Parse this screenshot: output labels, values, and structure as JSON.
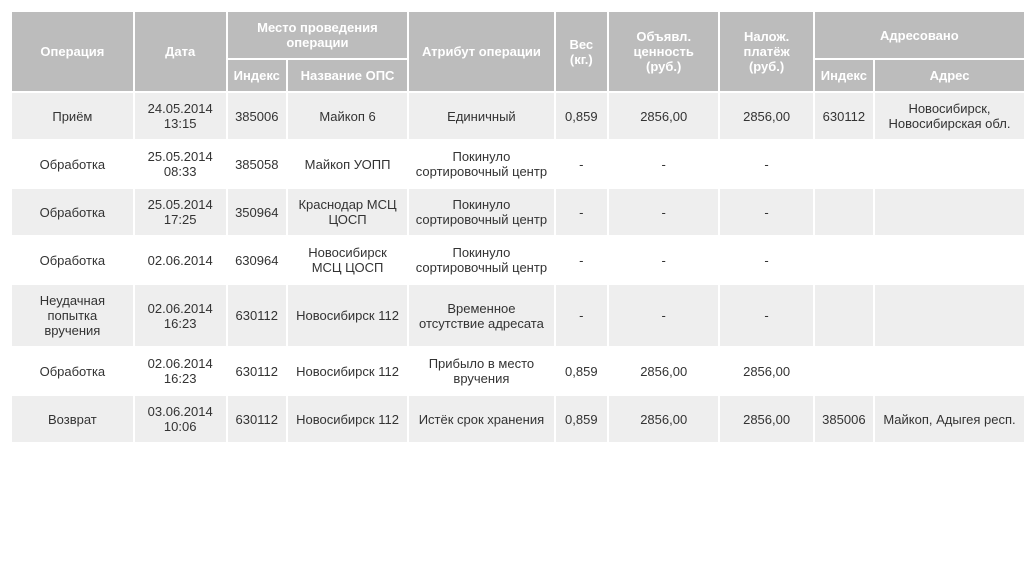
{
  "table": {
    "header_bg": "#bcbcbc",
    "header_fg": "#ffffff",
    "row_odd_bg": "#eeeeee",
    "row_even_bg": "#ffffff",
    "cell_fg": "#333333",
    "font_size": 13,
    "columns": {
      "operation": "Операция",
      "date": "Дата",
      "location_group": "Место проведения операции",
      "location_index": "Индекс",
      "location_name": "Название ОПС",
      "attribute": "Атрибут операции",
      "weight": "Вес (кг.)",
      "declared": "Объявл. ценность (руб.)",
      "cod": "Налож. платёж (руб.)",
      "addr_group": "Адресовано",
      "addr_index": "Индекс",
      "addr_addr": "Адрес"
    },
    "rows": [
      {
        "operation": "Приём",
        "date": "24.05.2014 13:15",
        "loc_index": "385006",
        "loc_name": "Майкоп 6",
        "attribute": "Единичный",
        "weight": "0,859",
        "declared": "2856,00",
        "cod": "2856,00",
        "addr_index": "630112",
        "addr_addr": "Новосибирск, Новосибирская обл."
      },
      {
        "operation": "Обработка",
        "date": "25.05.2014 08:33",
        "loc_index": "385058",
        "loc_name": "Майкоп УОПП",
        "attribute": "Покинуло сортировочный центр",
        "weight": "-",
        "declared": "-",
        "cod": "-",
        "addr_index": "",
        "addr_addr": ""
      },
      {
        "operation": "Обработка",
        "date": "25.05.2014 17:25",
        "loc_index": "350964",
        "loc_name": "Краснодар МСЦ ЦОСП",
        "attribute": "Покинуло сортировочный центр",
        "weight": "-",
        "declared": "-",
        "cod": "-",
        "addr_index": "",
        "addr_addr": ""
      },
      {
        "operation": "Обработка",
        "date": "02.06.2014",
        "loc_index": "630964",
        "loc_name": "Новосибирск МСЦ ЦОСП",
        "attribute": "Покинуло сортировочный центр",
        "weight": "-",
        "declared": "-",
        "cod": "-",
        "addr_index": "",
        "addr_addr": ""
      },
      {
        "operation": "Неудачная попытка вручения",
        "date": "02.06.2014 16:23",
        "loc_index": "630112",
        "loc_name": "Новосибирск 112",
        "attribute": "Временное отсутствие адресата",
        "weight": "-",
        "declared": "-",
        "cod": "-",
        "addr_index": "",
        "addr_addr": ""
      },
      {
        "operation": "Обработка",
        "date": "02.06.2014 16:23",
        "loc_index": "630112",
        "loc_name": "Новосибирск 112",
        "attribute": "Прибыло в место вручения",
        "weight": "0,859",
        "declared": "2856,00",
        "cod": "2856,00",
        "addr_index": "",
        "addr_addr": ""
      },
      {
        "operation": "Возврат",
        "date": "03.06.2014 10:06",
        "loc_index": "630112",
        "loc_name": "Новосибирск 112",
        "attribute": "Истёк срок хранения",
        "weight": "0,859",
        "declared": "2856,00",
        "cod": "2856,00",
        "addr_index": "385006",
        "addr_addr": "Майкоп, Адыгея респ."
      }
    ]
  }
}
